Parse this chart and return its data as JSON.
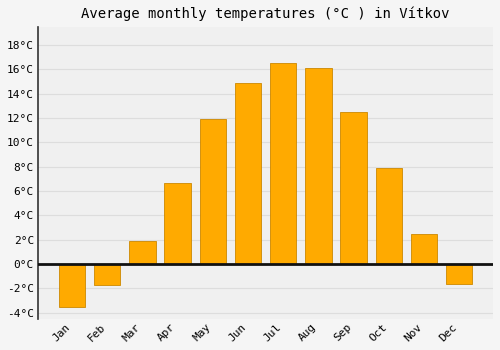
{
  "title": "Average monthly temperatures (°C ) in Vítkov",
  "months": [
    "Jan",
    "Feb",
    "Mar",
    "Apr",
    "May",
    "Jun",
    "Jul",
    "Aug",
    "Sep",
    "Oct",
    "Nov",
    "Dec"
  ],
  "values": [
    -3.5,
    -1.7,
    1.9,
    6.7,
    11.9,
    14.9,
    16.5,
    16.1,
    12.5,
    7.9,
    2.5,
    -1.6
  ],
  "bar_color": "#FFAA00",
  "bar_edge_color": "#CC8800",
  "bar_width": 0.75,
  "ylim": [
    -4.5,
    19.5
  ],
  "yticks": [
    -4,
    -2,
    0,
    2,
    4,
    6,
    8,
    10,
    12,
    14,
    16,
    18
  ],
  "ytick_labels": [
    "-4°C",
    "-2°C",
    "0°C",
    "2°C",
    "4°C",
    "6°C",
    "8°C",
    "10°C",
    "12°C",
    "14°C",
    "16°C",
    "18°C"
  ],
  "background_color": "#f5f5f5",
  "plot_bg_color": "#f0f0f0",
  "grid_color": "#dddddd",
  "title_fontsize": 10,
  "tick_fontsize": 8,
  "font_family": "monospace",
  "left_spine_color": "#333333",
  "zero_line_color": "#111111"
}
